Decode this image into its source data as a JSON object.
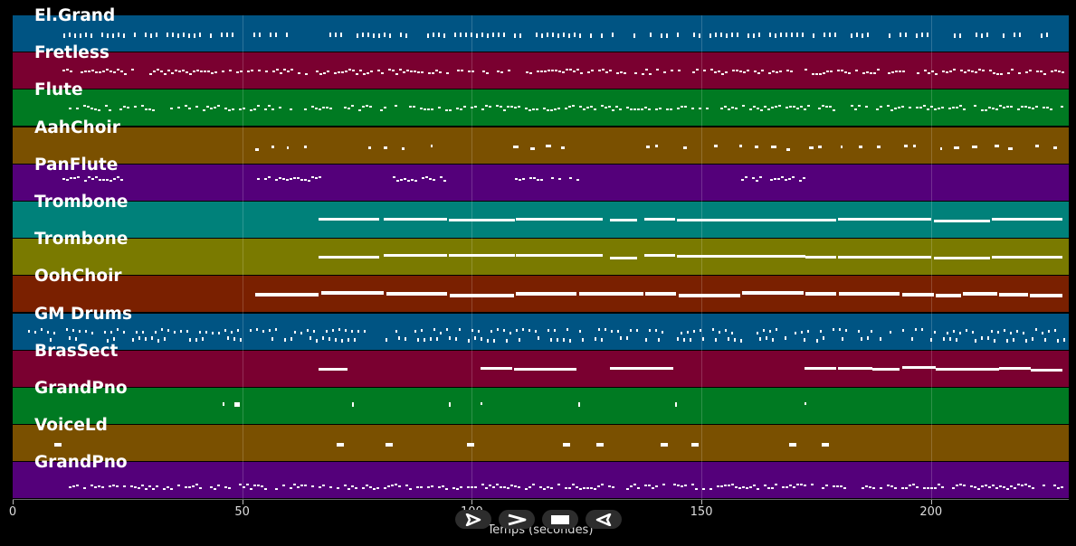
{
  "tracks": [
    {
      "label": "El.Grand",
      "color": "#005483",
      "style": "ticks"
    },
    {
      "label": "Fretless",
      "color": "#7a0030",
      "style": "dots"
    },
    {
      "label": "Flute",
      "color": "#007a22",
      "style": "dots"
    },
    {
      "label": "AahChoir",
      "color": "#7a5000",
      "style": "sparse"
    },
    {
      "label": "PanFlute",
      "color": "#54007a",
      "style": "bursts"
    },
    {
      "label": "Trombone",
      "color": "#00817a",
      "style": "long"
    },
    {
      "label": "Trombone",
      "color": "#7a7a00",
      "style": "long"
    },
    {
      "label": "OohChoir",
      "color": "#7a2000",
      "style": "block"
    },
    {
      "label": "GM Drums",
      "color": "#005483",
      "style": "drums"
    },
    {
      "label": "BrasSect",
      "color": "#7a0030",
      "style": "phrases"
    },
    {
      "label": "GrandPno",
      "color": "#007a22",
      "style": "rare"
    },
    {
      "label": "VoiceLd",
      "color": "#7a5000",
      "style": "dashes"
    },
    {
      "label": "GrandPno",
      "color": "#54007a",
      "style": "dots"
    }
  ],
  "xaxis": {
    "label": "Temps (secondes)",
    "min": 0,
    "max": 230,
    "ticks": [
      0,
      50,
      100,
      150,
      200
    ]
  },
  "controls": [
    {
      "name": "play-icon"
    },
    {
      "name": "fast-forward-icon"
    },
    {
      "name": "stop-icon"
    },
    {
      "name": "rewind-icon"
    }
  ]
}
